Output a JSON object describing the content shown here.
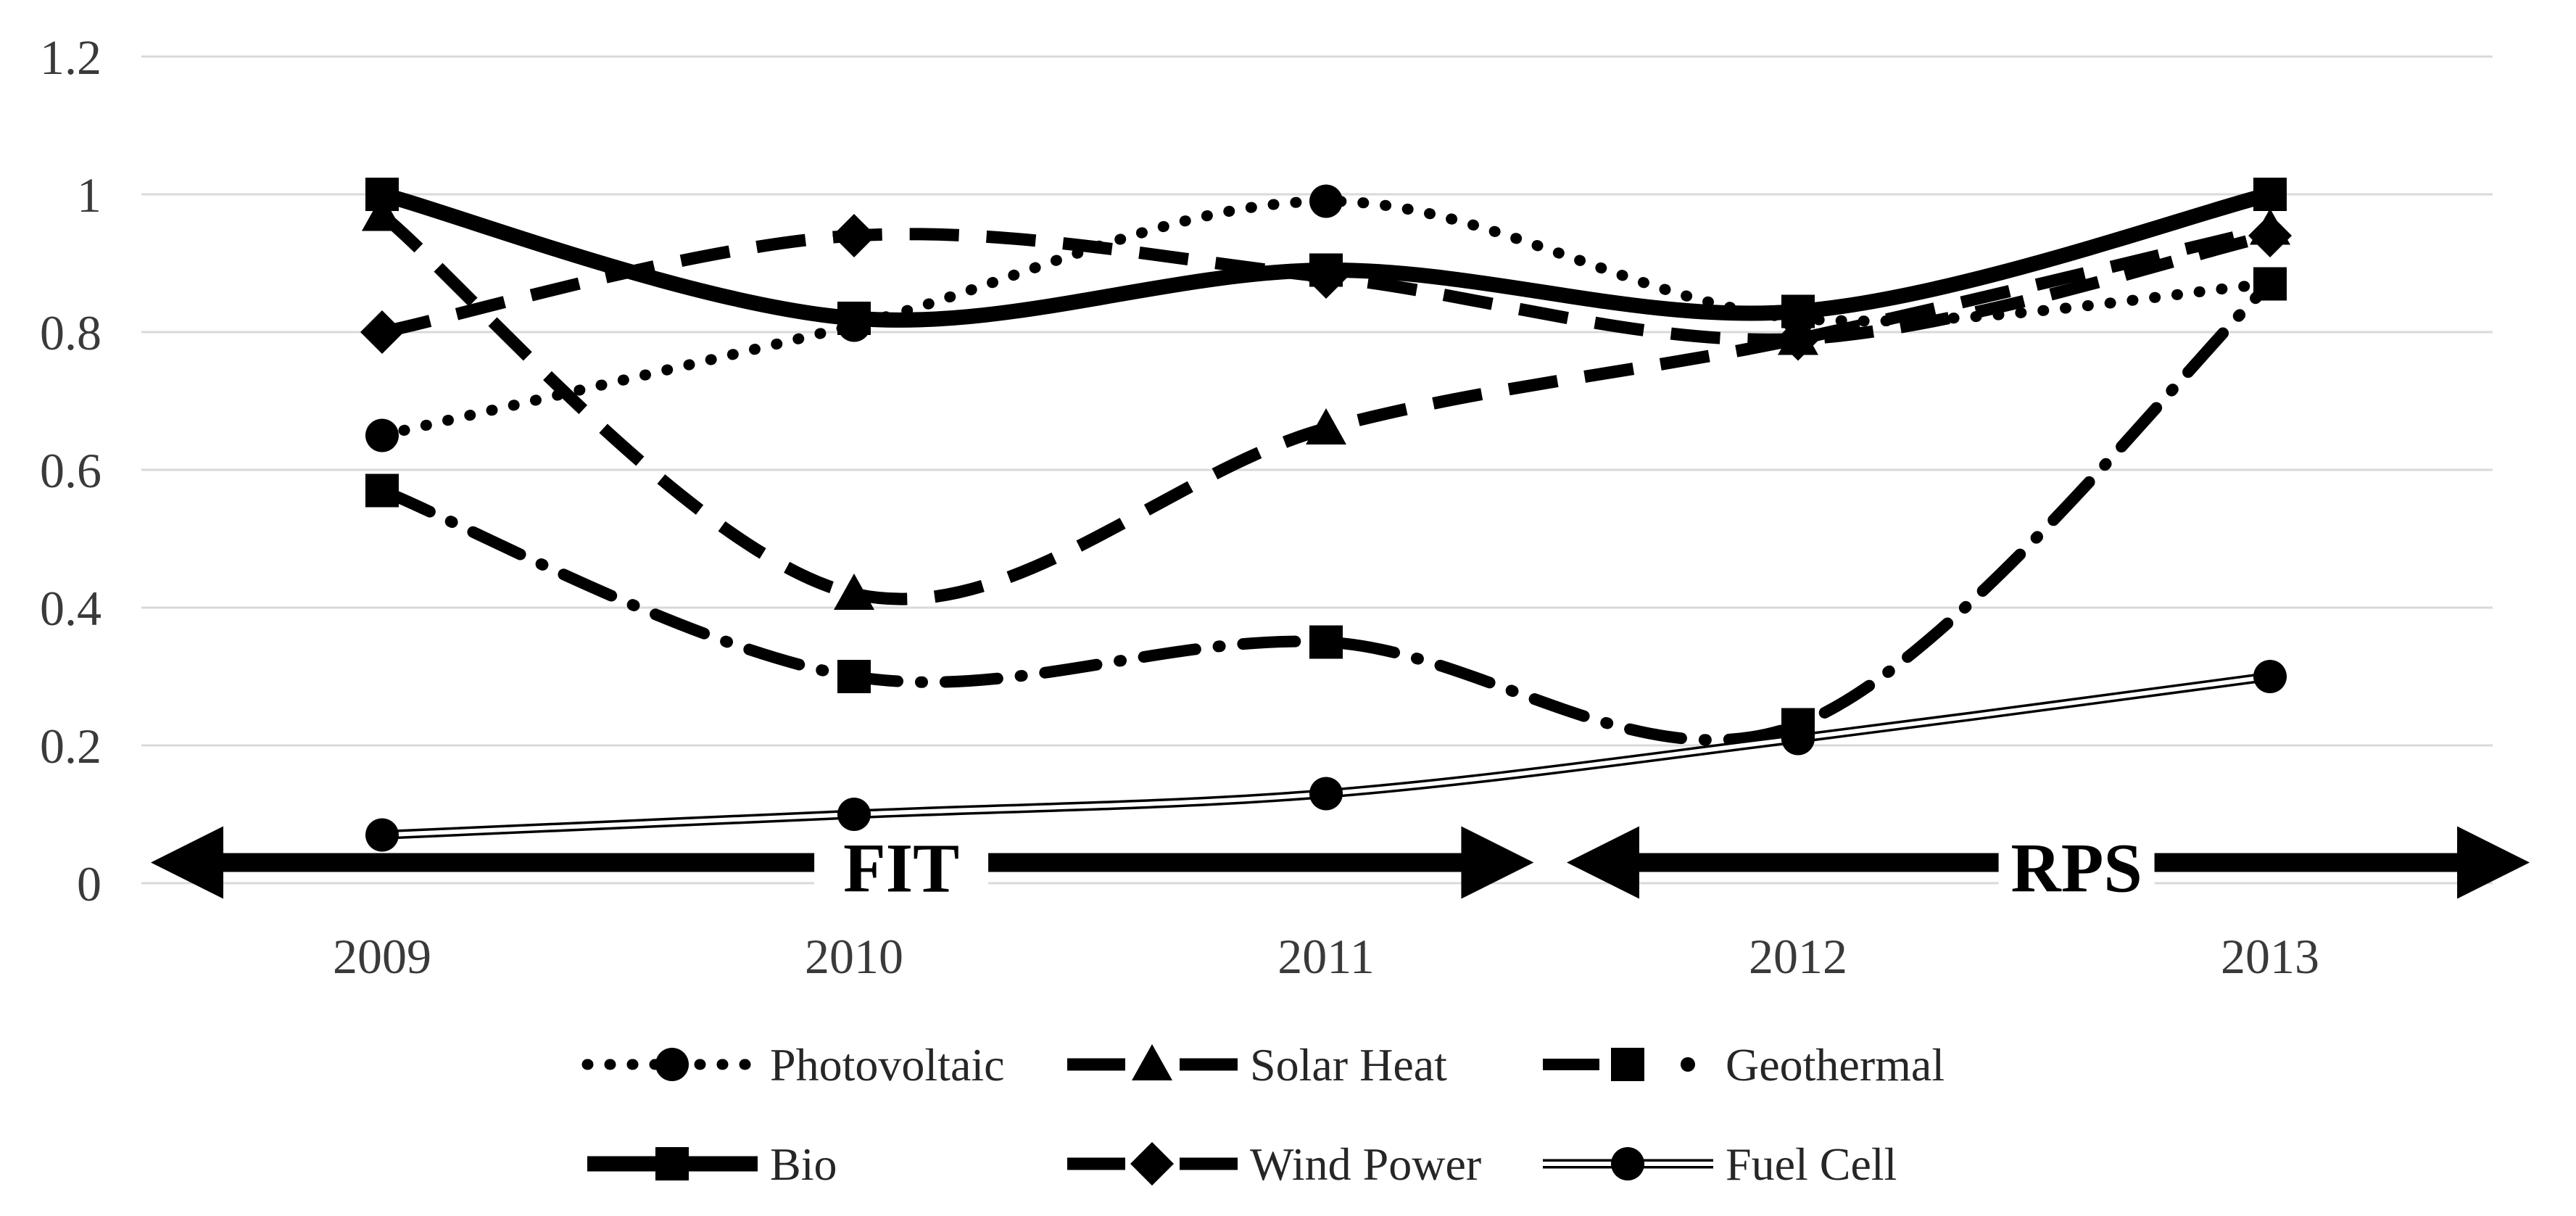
{
  "chart_data": {
    "type": "line",
    "title": "",
    "xlabel": "",
    "ylabel": "",
    "categories": [
      "2009",
      "2010",
      "2011",
      "2012",
      "2013"
    ],
    "x_years": [
      2009,
      2010,
      2011,
      2012,
      2013
    ],
    "ylim": [
      0,
      1.2
    ],
    "yticks": [
      0,
      0.2,
      0.4,
      0.6,
      0.8,
      1,
      1.2
    ],
    "ytick_labels": [
      "0",
      "0.2",
      "0.4",
      "0.6",
      "0.8",
      "1",
      "1.2"
    ],
    "grid": "horizontal-only",
    "legend_position": "bottom",
    "series": [
      {
        "name": "Photovoltaic",
        "marker": "circle",
        "line": "dotted",
        "values": [
          0.65,
          0.81,
          0.99,
          0.82,
          0.87
        ]
      },
      {
        "name": "Solar Heat",
        "marker": "triangle",
        "line": "dashed",
        "values": [
          0.97,
          0.42,
          0.66,
          0.79,
          0.95
        ]
      },
      {
        "name": "Geothermal",
        "marker": "square",
        "line": "dash-dot",
        "values": [
          0.57,
          0.3,
          0.35,
          0.23,
          0.87
        ]
      },
      {
        "name": "Bio",
        "marker": "square",
        "line": "solid",
        "values": [
          1.0,
          0.82,
          0.89,
          0.83,
          1.0
        ]
      },
      {
        "name": "Wind Power",
        "marker": "diamond",
        "line": "dashed",
        "values": [
          0.8,
          0.94,
          0.88,
          0.79,
          0.94
        ]
      },
      {
        "name": "Fuel Cell",
        "marker": "circle",
        "line": "double",
        "values": [
          0.07,
          0.1,
          0.13,
          0.21,
          0.3
        ]
      }
    ],
    "legend_rows": [
      [
        "Photovoltaic",
        "Solar Heat",
        "Geothermal"
      ],
      [
        "Bio",
        "Wind Power",
        "Fuel Cell"
      ]
    ],
    "annotations": [
      {
        "label": "FIT",
        "type": "double-headed-arrow",
        "x_start": 2008.51,
        "x_end": 2011.44,
        "label_x": 2010.1,
        "y": 0.03
      },
      {
        "label": "RPS",
        "type": "double-headed-arrow",
        "x_start": 2011.51,
        "x_end": 2013.55,
        "label_x": 2012.59,
        "y": 0.03
      }
    ]
  },
  "colors": {
    "series_color": "#000000",
    "grid": "#d9d9d9",
    "axis_text": "#3a3a3a",
    "annotation_text": "#000000",
    "background": "#ffffff"
  }
}
